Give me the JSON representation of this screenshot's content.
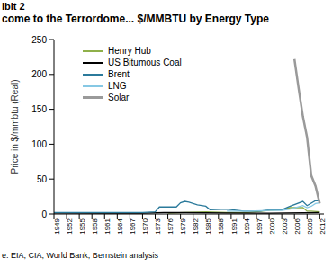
{
  "chart_data": {
    "type": "line",
    "exhibit": "ibit 2",
    "title": "come to the Terrordome... $/MMBTU by Energy Type",
    "y_label": "Price in $/mmbtu (Real)",
    "source": "e: EIA, CIA, World Bank, Bernstein analysis",
    "xlim": [
      1949,
      2013
    ],
    "xticks": [
      1949,
      1952,
      1955,
      1958,
      1961,
      1964,
      1967,
      1970,
      1973,
      1976,
      1979,
      1982,
      1985,
      1988,
      1991,
      1994,
      1997,
      2000,
      2003,
      2006,
      2009,
      2012
    ],
    "ylim": [
      0,
      250
    ],
    "yticks": [
      0,
      50,
      100,
      150,
      200,
      250
    ],
    "grid": false,
    "legend": "top-left",
    "series": [
      {
        "name": "Henry Hub",
        "color": "#8fb04a",
        "x": [
          1976,
          1980,
          1985,
          1990,
          1995,
          2000,
          2003,
          2005,
          2008,
          2009,
          2010,
          2012
        ],
        "values": [
          1,
          2,
          3,
          2,
          2,
          5,
          6,
          9,
          9,
          4,
          4,
          3
        ]
      },
      {
        "name": "US Bitumous Coal",
        "color": "#000000",
        "x": [
          1949,
          1960,
          1970,
          1975,
          1980,
          1990,
          2000,
          2008,
          2012
        ],
        "values": [
          1.5,
          1.3,
          1.2,
          2,
          2,
          1.5,
          1.2,
          1.8,
          2
        ]
      },
      {
        "name": "Brent",
        "color": "#2b7a9b",
        "x": [
          1949,
          1960,
          1970,
          1973,
          1974,
          1978,
          1979,
          1980,
          1981,
          1983,
          1985,
          1986,
          1990,
          1994,
          1998,
          2000,
          2003,
          2005,
          2008,
          2009,
          2011,
          2012
        ],
        "values": [
          2,
          2,
          2,
          3,
          10,
          10,
          16,
          18,
          17,
          13,
          11,
          6,
          7,
          4,
          4,
          6,
          6,
          11,
          18,
          12,
          19,
          19
        ]
      },
      {
        "name": "LNG",
        "color": "#86c8e4",
        "x": [
          1990,
          1995,
          2000,
          2003,
          2005,
          2008,
          2009,
          2010,
          2011,
          2012
        ],
        "values": [
          4,
          4,
          5,
          5,
          7,
          12,
          9,
          11,
          15,
          16
        ]
      },
      {
        "name": "Solar",
        "color": "#9a9a9a",
        "x": [
          2006,
          2007,
          2008,
          2009,
          2010,
          2011,
          2012
        ],
        "values": [
          222,
          180,
          140,
          110,
          55,
          40,
          15
        ]
      }
    ]
  }
}
